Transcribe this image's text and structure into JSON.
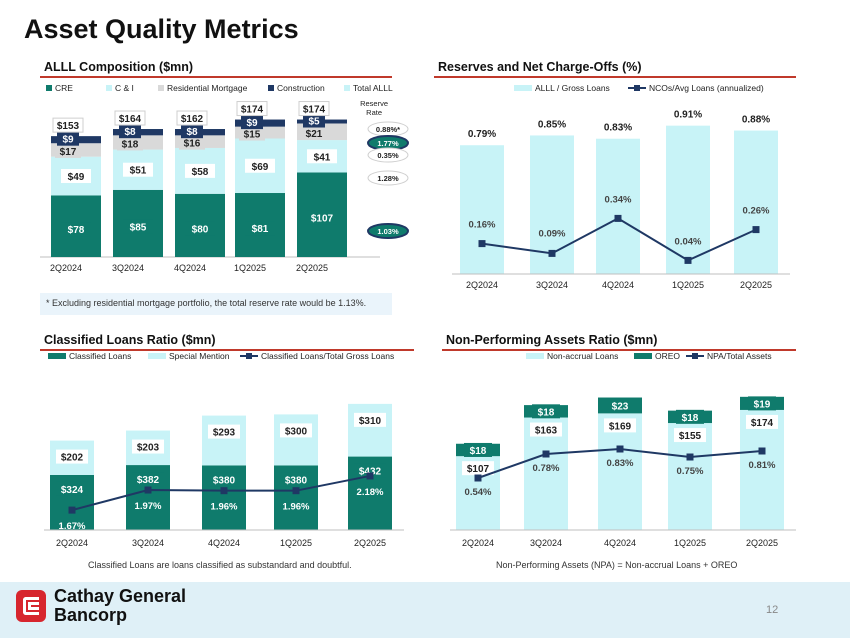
{
  "title": "Asset Quality Metrics",
  "colors": {
    "teal": "#0f7b6c",
    "light": "#c8f3f7",
    "gray": "#d9d9d9",
    "navy": "#1f3864",
    "rule": "#c0392b"
  },
  "footnote_alll": "* Excluding residential mortgage portfolio, the total reserve rate would be 1.13%.",
  "footnote_classified": "Classified Loans are loans classified as substandard and doubtful.",
  "footnote_npa": "Non-Performing Assets (NPA) = Non-accrual Loans + OREO",
  "brand_line1": "Cathay General",
  "brand_line2": "Bancorp",
  "page_number": "12",
  "chart_data": [
    {
      "id": "alll",
      "type": "bar",
      "title": "ALLL Composition ($mn)",
      "categories": [
        "2Q2024",
        "3Q2024",
        "4Q2024",
        "1Q2025",
        "2Q2025"
      ],
      "legend": [
        "CRE",
        "C & I",
        "Residential Mortgage",
        "Construction",
        "Total ALLL"
      ],
      "series": [
        {
          "name": "CRE",
          "values": [
            78,
            85,
            80,
            81,
            107
          ]
        },
        {
          "name": "C & I",
          "values": [
            49,
            51,
            58,
            69,
            41
          ]
        },
        {
          "name": "Residential Mortgage",
          "values": [
            17,
            18,
            16,
            15,
            21
          ]
        },
        {
          "name": "Construction",
          "values": [
            9,
            8,
            8,
            9,
            5
          ]
        }
      ],
      "totals": [
        153,
        164,
        162,
        174,
        174
      ],
      "reserve_rate_header": "Reserve Rate",
      "reserve_rates": [
        {
          "label": "0.88%*",
          "series": "Total ALLL"
        },
        {
          "label": "1.77%",
          "series": "Construction"
        },
        {
          "label": "0.35%",
          "series": "Residential Mortgage"
        },
        {
          "label": "1.28%",
          "series": "C & I"
        },
        {
          "label": "1.03%",
          "series": "CRE"
        }
      ]
    },
    {
      "id": "reserves",
      "type": "bar",
      "title": "Reserves and Net Charge-Offs (%)",
      "categories": [
        "2Q2024",
        "3Q2024",
        "4Q2024",
        "1Q2025",
        "2Q2025"
      ],
      "series": [
        {
          "name": "ALLL / Gross Loans",
          "values": [
            0.79,
            0.85,
            0.83,
            0.91,
            0.88
          ],
          "labels": [
            "0.79%",
            "0.85%",
            "0.83%",
            "0.91%",
            "0.88%"
          ]
        },
        {
          "name": "NCOs/Avg Loans (annualized)",
          "type": "line",
          "values": [
            0.16,
            0.09,
            0.34,
            0.04,
            0.26
          ],
          "labels": [
            "0.16%",
            "0.09%",
            "0.34%",
            "0.04%",
            "0.26%"
          ]
        }
      ]
    },
    {
      "id": "classified",
      "type": "bar",
      "title": "Classified Loans Ratio ($mn)",
      "categories": [
        "2Q2024",
        "3Q2024",
        "4Q2024",
        "1Q2025",
        "2Q2025"
      ],
      "series": [
        {
          "name": "Classified Loans",
          "values": [
            324,
            382,
            380,
            380,
            432
          ]
        },
        {
          "name": "Special Mention",
          "values": [
            202,
            203,
            293,
            300,
            310
          ]
        },
        {
          "name": "Classified Loans/Total Gross Loans",
          "type": "line",
          "values": [
            1.67,
            1.97,
            1.96,
            1.96,
            2.18
          ],
          "labels": [
            "1.67%",
            "1.97%",
            "1.96%",
            "1.96%",
            "2.18%"
          ]
        }
      ]
    },
    {
      "id": "npa",
      "type": "bar",
      "title": "Non-Performing Assets Ratio ($mn)",
      "categories": [
        "2Q2024",
        "3Q2024",
        "4Q2024",
        "1Q2025",
        "2Q2025"
      ],
      "series": [
        {
          "name": "Non-accrual Loans",
          "values": [
            107,
            163,
            169,
            155,
            174
          ]
        },
        {
          "name": "OREO",
          "values": [
            18,
            18,
            23,
            18,
            19
          ]
        },
        {
          "name": "NPA/Total Assets",
          "type": "line",
          "values": [
            0.54,
            0.78,
            0.83,
            0.75,
            0.81
          ],
          "labels": [
            "0.54%",
            "0.78%",
            "0.83%",
            "0.75%",
            "0.81%"
          ]
        }
      ]
    }
  ]
}
